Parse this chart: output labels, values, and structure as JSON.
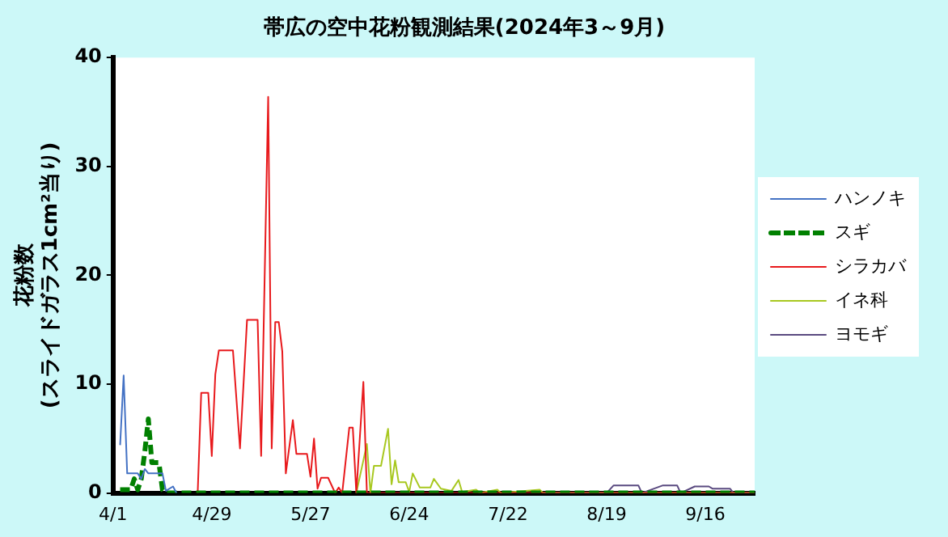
{
  "chart_data": {
    "type": "line",
    "title": "帯広の空中花粉観測結果(2024年3～9月)",
    "ylabel": "花粉数\n(スライドガラス1cm²当り)",
    "xlim": [
      "--04-01",
      "--09-30"
    ],
    "xticks": [
      {
        "value": "--04-01",
        "label": "4/1"
      },
      {
        "value": "--04-29",
        "label": "4/29"
      },
      {
        "value": "--05-27",
        "label": "5/27"
      },
      {
        "value": "--06-24",
        "label": "6/24"
      },
      {
        "value": "--07-22",
        "label": "7/22"
      },
      {
        "value": "--08-19",
        "label": "8/19"
      },
      {
        "value": "--09-16",
        "label": "9/16"
      }
    ],
    "ylim": [
      0,
      40
    ],
    "yticks": [
      0,
      10,
      20,
      30,
      40
    ],
    "grid": false,
    "legend": "right",
    "marker": "none",
    "series": [
      {
        "name": "ハンノキ",
        "color": "#4472c4",
        "line_style": "solid",
        "x": [
          "--04-03",
          "--04-04",
          "--04-05",
          "--04-08",
          "--04-09",
          "--04-10",
          "--04-11",
          "--04-15",
          "--04-16",
          "--04-18",
          "--04-19"
        ],
        "values": [
          4.4,
          10.8,
          1.8,
          1.8,
          1.3,
          2.2,
          1.8,
          1.8,
          0.2,
          0.6,
          0
        ]
      },
      {
        "name": "スギ",
        "color": "#008000",
        "line_style": "dashed",
        "x": [
          "--04-03",
          "--04-06",
          "--04-07",
          "--04-08",
          "--04-09",
          "--04-10",
          "--04-11",
          "--04-12",
          "--04-14",
          "--04-15",
          "--04-16",
          "--09-30"
        ],
        "values": [
          0.3,
          0.3,
          1.3,
          0.3,
          1.3,
          3.8,
          6.8,
          2.8,
          2.8,
          0.3,
          0,
          0
        ]
      },
      {
        "name": "シラカバ",
        "color": "#e8191c",
        "line_style": "solid",
        "x": [
          "--04-25",
          "--04-26",
          "--04-28",
          "--04-29",
          "--04-30",
          "--05-01",
          "--05-05",
          "--05-07",
          "--05-09",
          "--05-12",
          "--05-13",
          "--05-15",
          "--05-16",
          "--05-17",
          "--05-18",
          "--05-19",
          "--05-20",
          "--05-22",
          "--05-23",
          "--05-26",
          "--05-27",
          "--05-28",
          "--05-29",
          "--05-30",
          "--06-01",
          "--06-03",
          "--06-04",
          "--06-05",
          "--06-07",
          "--06-08",
          "--06-09",
          "--06-11",
          "--06-12",
          "--09-30"
        ],
        "values": [
          0,
          9.2,
          9.2,
          3.4,
          10.9,
          13.1,
          13.1,
          4.1,
          15.9,
          15.9,
          3.4,
          36.4,
          4.1,
          15.7,
          15.7,
          13.0,
          1.8,
          6.7,
          3.6,
          3.6,
          1.5,
          5.0,
          0.4,
          1.4,
          1.4,
          0,
          0.5,
          0,
          6.0,
          6.0,
          0,
          10.2,
          0,
          0
        ]
      },
      {
        "name": "イネ科",
        "color": "#a8c820",
        "line_style": "solid",
        "x": [
          "--06-09",
          "--06-12",
          "--06-13",
          "--06-14",
          "--06-16",
          "--06-18",
          "--06-19",
          "--06-20",
          "--06-21",
          "--06-23",
          "--06-24",
          "--06-25",
          "--06-27",
          "--06-30",
          "--07-01",
          "--07-03",
          "--07-06",
          "--07-08",
          "--07-09",
          "--07-13",
          "--07-14",
          "--07-19",
          "--07-20",
          "--07-31",
          "--08-01",
          "--09-30"
        ],
        "values": [
          0,
          4.5,
          0,
          2.5,
          2.5,
          5.9,
          0.8,
          3.0,
          1.0,
          1.0,
          0.1,
          1.8,
          0.5,
          0.5,
          1.3,
          0.4,
          0.2,
          1.2,
          0.1,
          0.3,
          0,
          0.3,
          0,
          0.3,
          0,
          0
        ]
      },
      {
        "name": "ヨモギ",
        "color": "#5a4a80",
        "line_style": "solid",
        "x": [
          "--08-01",
          "--08-19",
          "--08-21",
          "--08-28",
          "--08-29",
          "--09-04",
          "--09-08",
          "--09-09",
          "--09-13",
          "--09-17",
          "--09-18",
          "--09-23",
          "--09-24",
          "--09-30"
        ],
        "values": [
          0,
          0,
          0.7,
          0.7,
          0,
          0.7,
          0.7,
          0,
          0.6,
          0.6,
          0.4,
          0.4,
          0,
          0
        ]
      }
    ]
  }
}
